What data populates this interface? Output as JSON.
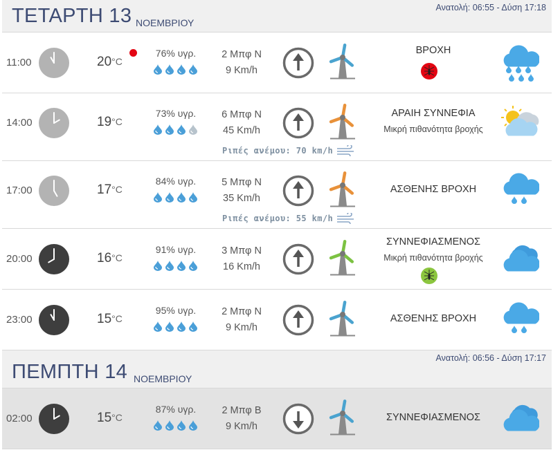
{
  "days": [
    {
      "name": "ΤΕΤΑΡΤΗ 13",
      "month": "ΝΟΕΜΒΡΙΟΥ",
      "sun": "Ανατολή: 06:55  - Δύση 17:18",
      "rows": [
        {
          "time": "11:00",
          "temp": "20",
          "unit": "°C",
          "humidity": "76% υγρ.",
          "drops_full": 4,
          "wind_beaufort": "2 Μπφ Ν",
          "wind_speed": "9 Km/h",
          "arrow": "up",
          "turbine_color": "#4aa3cf",
          "condition": "ΒΡΟΧΗ",
          "subtext": "",
          "mosquito": "red",
          "gusts": "",
          "alert": true,
          "weather_icon": "rain-cloud-icon"
        },
        {
          "time": "14:00",
          "temp": "19",
          "unit": "°C",
          "humidity": "73% υγρ.",
          "drops_full": 3,
          "wind_beaufort": "6 Μπφ Ν",
          "wind_speed": "45 Km/h",
          "arrow": "up",
          "turbine_color": "#e8913a",
          "condition": "ΑΡΑΙΗ ΣΥΝΝΕΦΙΑ",
          "subtext": "Μικρή πιθανότητα βροχής",
          "mosquito": "",
          "gusts": "Ριπές ανέμου: 70 km/h",
          "alert": false,
          "weather_icon": "sun-cloud-icon"
        },
        {
          "time": "17:00",
          "temp": "17",
          "unit": "°C",
          "humidity": "84% υγρ.",
          "drops_full": 4,
          "wind_beaufort": "5 Μπφ Ν",
          "wind_speed": "35 Km/h",
          "arrow": "up",
          "turbine_color": "#e8913a",
          "condition": "ΑΣΘΕΝΗΣ ΒΡΟΧΗ",
          "subtext": "",
          "mosquito": "",
          "gusts": "Ριπές ανέμου: 55 km/h",
          "alert": false,
          "weather_icon": "light-rain-cloud-icon"
        },
        {
          "time": "20:00",
          "temp": "16",
          "unit": "°C",
          "humidity": "91% υγρ.",
          "drops_full": 4,
          "wind_beaufort": "3 Μπφ Ν",
          "wind_speed": "16 Km/h",
          "arrow": "up",
          "turbine_color": "#7cc242",
          "condition": "ΣΥΝΝΕΦΙΑΣΜΕΝΟΣ",
          "subtext": "Μικρή πιθανότητα βροχής",
          "mosquito": "green",
          "gusts": "",
          "alert": false,
          "weather_icon": "clouds-icon"
        },
        {
          "time": "23:00",
          "temp": "15",
          "unit": "°C",
          "humidity": "95% υγρ.",
          "drops_full": 4,
          "wind_beaufort": "2 Μπφ Ν",
          "wind_speed": "9 Km/h",
          "arrow": "up",
          "turbine_color": "#4aa3cf",
          "condition": "ΑΣΘΕΝΗΣ ΒΡΟΧΗ",
          "subtext": "",
          "mosquito": "",
          "gusts": "",
          "alert": false,
          "weather_icon": "light-rain-cloud-icon"
        }
      ]
    },
    {
      "name": "ΠΕΜΠΤΗ 14",
      "month": "ΝΟΕΜΒΡΙΟΥ",
      "sun": "Ανατολή: 06:56  - Δύση 17:17",
      "rows": [
        {
          "time": "02:00",
          "temp": "15",
          "unit": "°C",
          "humidity": "87% υγρ.",
          "drops_full": 4,
          "wind_beaufort": "2 Μπφ Β",
          "wind_speed": "9 Km/h",
          "arrow": "down",
          "turbine_color": "#4aa3cf",
          "condition": "ΣΥΝΝΕΦΙΑΣΜΕΝΟΣ",
          "subtext": "",
          "mosquito": "",
          "gusts": "",
          "alert": false,
          "weather_icon": "clouds-icon"
        }
      ]
    }
  ],
  "colors": {
    "drop_full": "#4a9fd8",
    "drop_empty": "#b7c3cc",
    "cloud": "#4aa9e6",
    "mosquito_red": "#e30613",
    "mosquito_green": "#8cc63f"
  }
}
